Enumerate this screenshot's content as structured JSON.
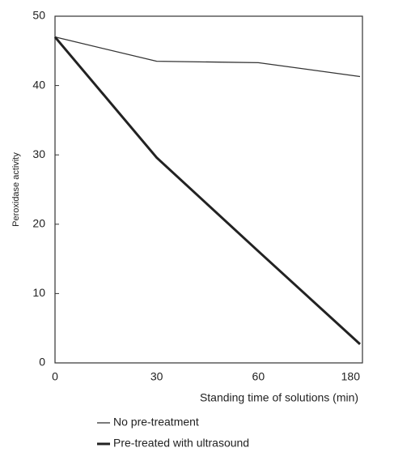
{
  "chart_data": {
    "type": "line",
    "x_label": "Standing time of solutions (min)",
    "y_label": "Peroxidase activity",
    "categories": [
      "0",
      "30",
      "60",
      "180"
    ],
    "series": [
      {
        "name": "No pre-treatment",
        "color": "#333333",
        "line_width": 1.3,
        "values": [
          47,
          43.5,
          43.3,
          41.3
        ]
      },
      {
        "name": "Pre-treated with ultrasound",
        "color": "#222222",
        "line_width": 3,
        "values": [
          47,
          29.6,
          16.1,
          2.7
        ]
      }
    ],
    "ylim": [
      0,
      50
    ],
    "yticks": [
      0,
      10,
      20,
      30,
      40,
      50
    ],
    "grid": false
  }
}
